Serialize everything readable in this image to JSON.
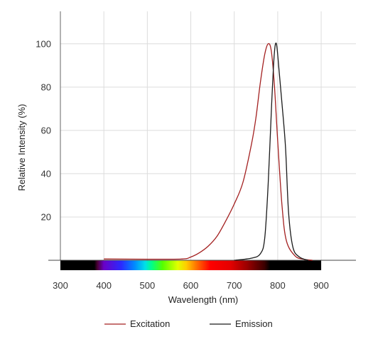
{
  "chart_data": {
    "type": "line",
    "xlabel": "Wavelength (nm)",
    "ylabel": "Relative Intensity (%)",
    "xlim": [
      300,
      980
    ],
    "ylim": [
      0,
      115
    ],
    "xticks": [
      300,
      400,
      500,
      600,
      700,
      800,
      900
    ],
    "yticks": [
      20,
      40,
      60,
      80,
      100
    ],
    "grid": true,
    "legend_position": "bottom-center",
    "spectrum_bar": {
      "range": [
        300,
        900
      ],
      "visible_range": [
        380,
        780
      ]
    },
    "series": [
      {
        "name": "Excitation",
        "color": "#a32020",
        "points": [
          [
            400,
            0.6
          ],
          [
            500,
            0.5
          ],
          [
            580,
            0.6
          ],
          [
            600,
            1.5
          ],
          [
            620,
            3.5
          ],
          [
            640,
            6.5
          ],
          [
            660,
            11
          ],
          [
            680,
            18
          ],
          [
            700,
            26
          ],
          [
            720,
            36
          ],
          [
            740,
            54
          ],
          [
            750,
            66
          ],
          [
            760,
            82
          ],
          [
            770,
            95
          ],
          [
            778,
            100
          ],
          [
            785,
            97
          ],
          [
            792,
            82
          ],
          [
            800,
            55
          ],
          [
            810,
            25
          ],
          [
            820,
            9
          ],
          [
            840,
            2
          ],
          [
            860,
            0.5
          ],
          [
            880,
            0
          ]
        ]
      },
      {
        "name": "Emission",
        "color": "#1a1a1a",
        "points": [
          [
            700,
            0
          ],
          [
            740,
            1
          ],
          [
            760,
            3
          ],
          [
            770,
            10
          ],
          [
            778,
            35
          ],
          [
            786,
            72
          ],
          [
            792,
            95
          ],
          [
            797,
            100
          ],
          [
            803,
            88
          ],
          [
            810,
            72
          ],
          [
            818,
            52
          ],
          [
            825,
            22
          ],
          [
            835,
            6
          ],
          [
            850,
            1.5
          ],
          [
            870,
            0
          ]
        ]
      }
    ]
  }
}
